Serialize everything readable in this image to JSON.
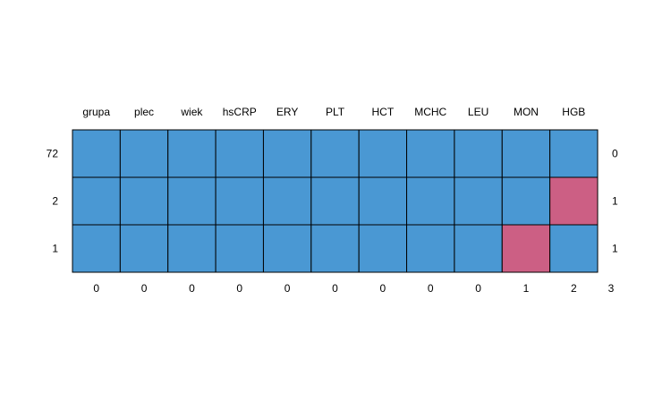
{
  "chart_data": {
    "type": "heatmap",
    "title": "",
    "columns": [
      "grupa",
      "plec",
      "wiek",
      "hsCRP",
      "ERY",
      "PLT",
      "HCT",
      "MCHC",
      "LEU",
      "MON",
      "HGB"
    ],
    "rows": [
      {
        "count": "72",
        "missing": [
          0,
          0,
          0,
          0,
          0,
          0,
          0,
          0,
          0,
          0,
          0
        ],
        "missing_total": "0"
      },
      {
        "count": "2",
        "missing": [
          0,
          0,
          0,
          0,
          0,
          0,
          0,
          0,
          0,
          0,
          1
        ],
        "missing_total": "1"
      },
      {
        "count": "1",
        "missing": [
          0,
          0,
          0,
          0,
          0,
          0,
          0,
          0,
          0,
          1,
          0
        ],
        "missing_total": "1"
      }
    ],
    "column_missing_counts": [
      "0",
      "0",
      "0",
      "0",
      "0",
      "0",
      "0",
      "0",
      "0",
      "1",
      "2"
    ],
    "total_missing": "3",
    "colors": {
      "observed": "#4a98d3",
      "missing": "#cc5f84",
      "border": "#000000"
    }
  }
}
